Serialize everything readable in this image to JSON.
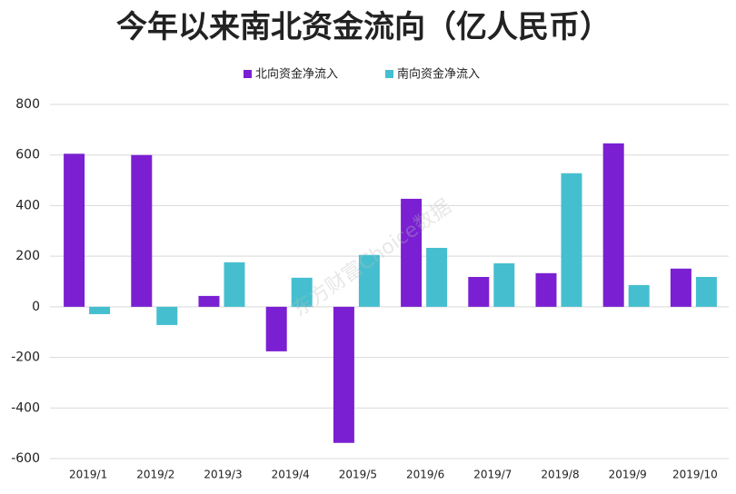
{
  "chart_data": {
    "type": "bar",
    "title": "今年以来南北资金流向（亿人民币）",
    "categories": [
      "2019/1",
      "2019/2",
      "2019/3",
      "2019/4",
      "2019/5",
      "2019/6",
      "2019/7",
      "2019/8",
      "2019/9",
      "2019/10"
    ],
    "series": [
      {
        "name": "北向资金净流入",
        "color": "#7a1fd2",
        "values": [
          605,
          600,
          43,
          -176,
          -538,
          427,
          118,
          133,
          646,
          151
        ]
      },
      {
        "name": "南向资金净流入",
        "color": "#45bfcf",
        "values": [
          -29,
          -72,
          176,
          115,
          205,
          233,
          172,
          528,
          86,
          118
        ]
      }
    ],
    "ylim": [
      -600,
      800
    ],
    "yticks": [
      -600,
      -400,
      -200,
      0,
      200,
      400,
      600,
      800
    ],
    "grid": true,
    "legend": "top",
    "watermark": "东方财富Choice数据"
  }
}
